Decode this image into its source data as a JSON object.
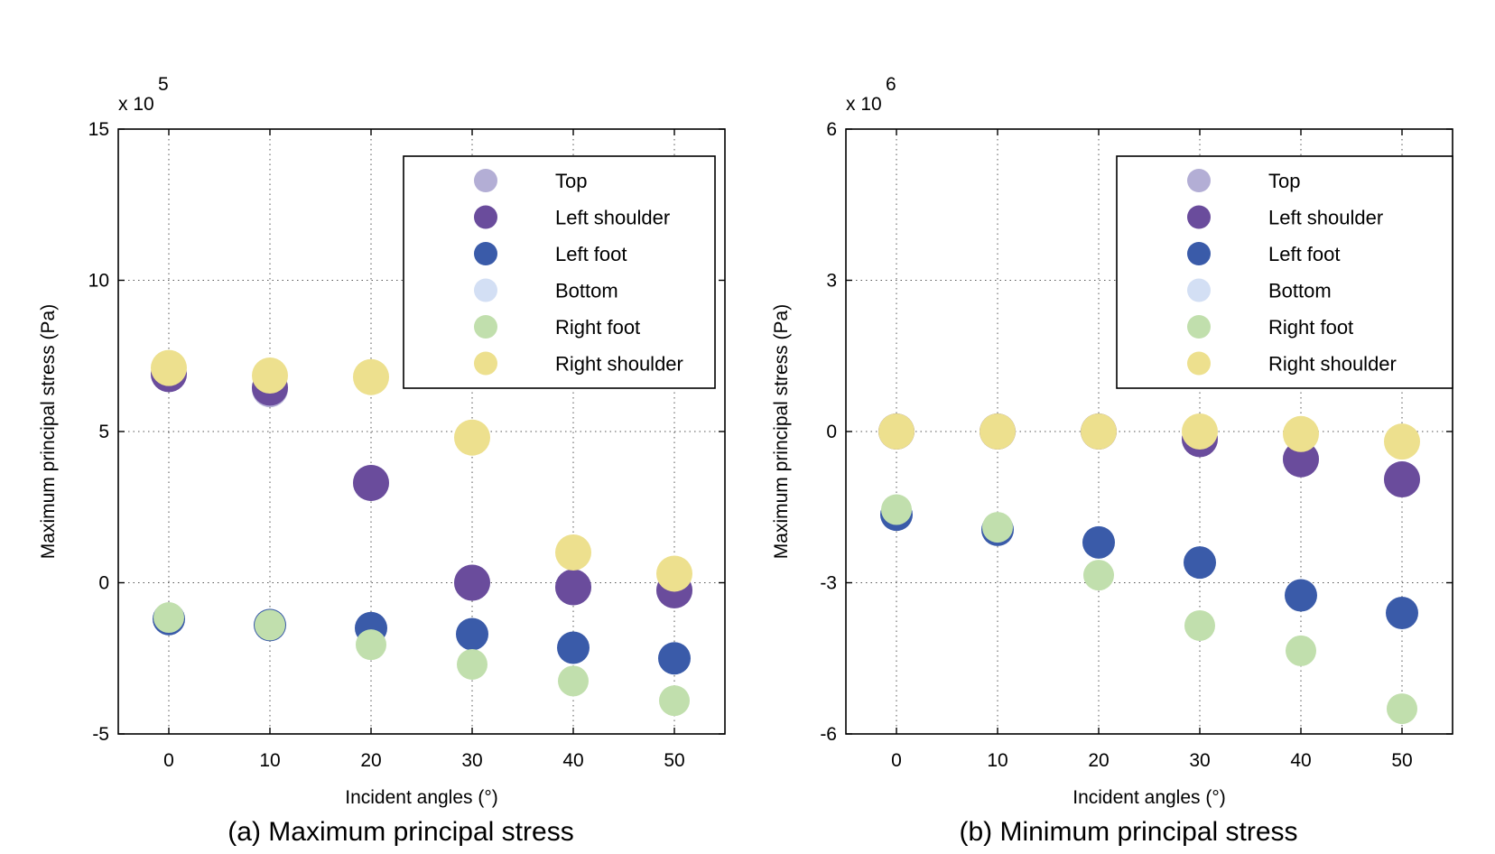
{
  "chart_data": [
    {
      "type": "scatter",
      "caption": "(a) Maximum principal stress",
      "xlabel": "Incident angles (°)",
      "ylabel": "Maximum principal stress (Pa)",
      "multiplier": "x 10",
      "multiplier_exp": "5",
      "xlim": [
        -5,
        55
      ],
      "ylim": [
        -5,
        15
      ],
      "xticks": [
        0,
        10,
        20,
        30,
        40,
        50
      ],
      "yticks": [
        -5,
        0,
        5,
        10,
        15
      ],
      "grid": true,
      "legend_position": "top-right",
      "x": [
        0,
        10,
        20,
        30,
        40,
        50
      ],
      "series": [
        {
          "name": "Top",
          "color": "#b3aed5",
          "values": [
            6.9,
            6.4,
            3.3,
            0.0,
            -0.15,
            -0.25
          ]
        },
        {
          "name": "Left shoulder",
          "color": "#6a4c9c",
          "values": [
            6.9,
            6.45,
            3.3,
            0.0,
            -0.15,
            -0.25
          ]
        },
        {
          "name": "Left foot",
          "color": "#3a5ba9",
          "values": [
            -1.2,
            -1.4,
            -1.5,
            -1.7,
            -2.15,
            -2.5
          ]
        },
        {
          "name": "Bottom",
          "color": "#d3dff4",
          "values": [
            -1.2,
            -1.4,
            -1.5,
            -1.7,
            -2.15,
            -2.5
          ]
        },
        {
          "name": "Right foot",
          "color": "#c1dfad",
          "values": [
            -1.15,
            -1.4,
            -2.05,
            -2.7,
            -3.25,
            -3.9
          ]
        },
        {
          "name": "Right shoulder",
          "color": "#ede08e",
          "values": [
            7.1,
            6.85,
            6.8,
            4.8,
            1.0,
            0.3
          ]
        }
      ]
    },
    {
      "type": "scatter",
      "caption": "(b) Minimum principal stress",
      "xlabel": "Incident angles (°)",
      "ylabel": "Maximum principal stress (Pa)",
      "multiplier": "x 10",
      "multiplier_exp": "6",
      "xlim": [
        -5,
        55
      ],
      "ylim": [
        -6,
        6
      ],
      "xticks": [
        0,
        10,
        20,
        30,
        40,
        50
      ],
      "yticks": [
        -6,
        -3,
        0,
        3,
        6
      ],
      "grid": true,
      "legend_position": "top-right",
      "x": [
        0,
        10,
        20,
        30,
        40,
        50
      ],
      "series": [
        {
          "name": "Top",
          "color": "#b3aed5",
          "values": [
            0.0,
            0.0,
            0.0,
            -0.15,
            -0.55,
            -0.95
          ]
        },
        {
          "name": "Left shoulder",
          "color": "#6a4c9c",
          "values": [
            0.0,
            0.0,
            0.0,
            -0.15,
            -0.55,
            -0.95
          ]
        },
        {
          "name": "Left foot",
          "color": "#3a5ba9",
          "values": [
            -1.65,
            -1.95,
            -2.2,
            -2.6,
            -3.25,
            -3.6
          ]
        },
        {
          "name": "Bottom",
          "color": "#d3dff4",
          "values": [
            -1.65,
            -1.95,
            -2.2,
            -2.6,
            -3.25,
            -3.6
          ]
        },
        {
          "name": "Right foot",
          "color": "#c1dfad",
          "values": [
            -1.55,
            -1.9,
            -2.85,
            -3.85,
            -4.35,
            -5.5
          ]
        },
        {
          "name": "Right shoulder",
          "color": "#ede08e",
          "values": [
            0.0,
            0.0,
            0.0,
            0.0,
            -0.05,
            -0.2
          ]
        }
      ]
    }
  ]
}
